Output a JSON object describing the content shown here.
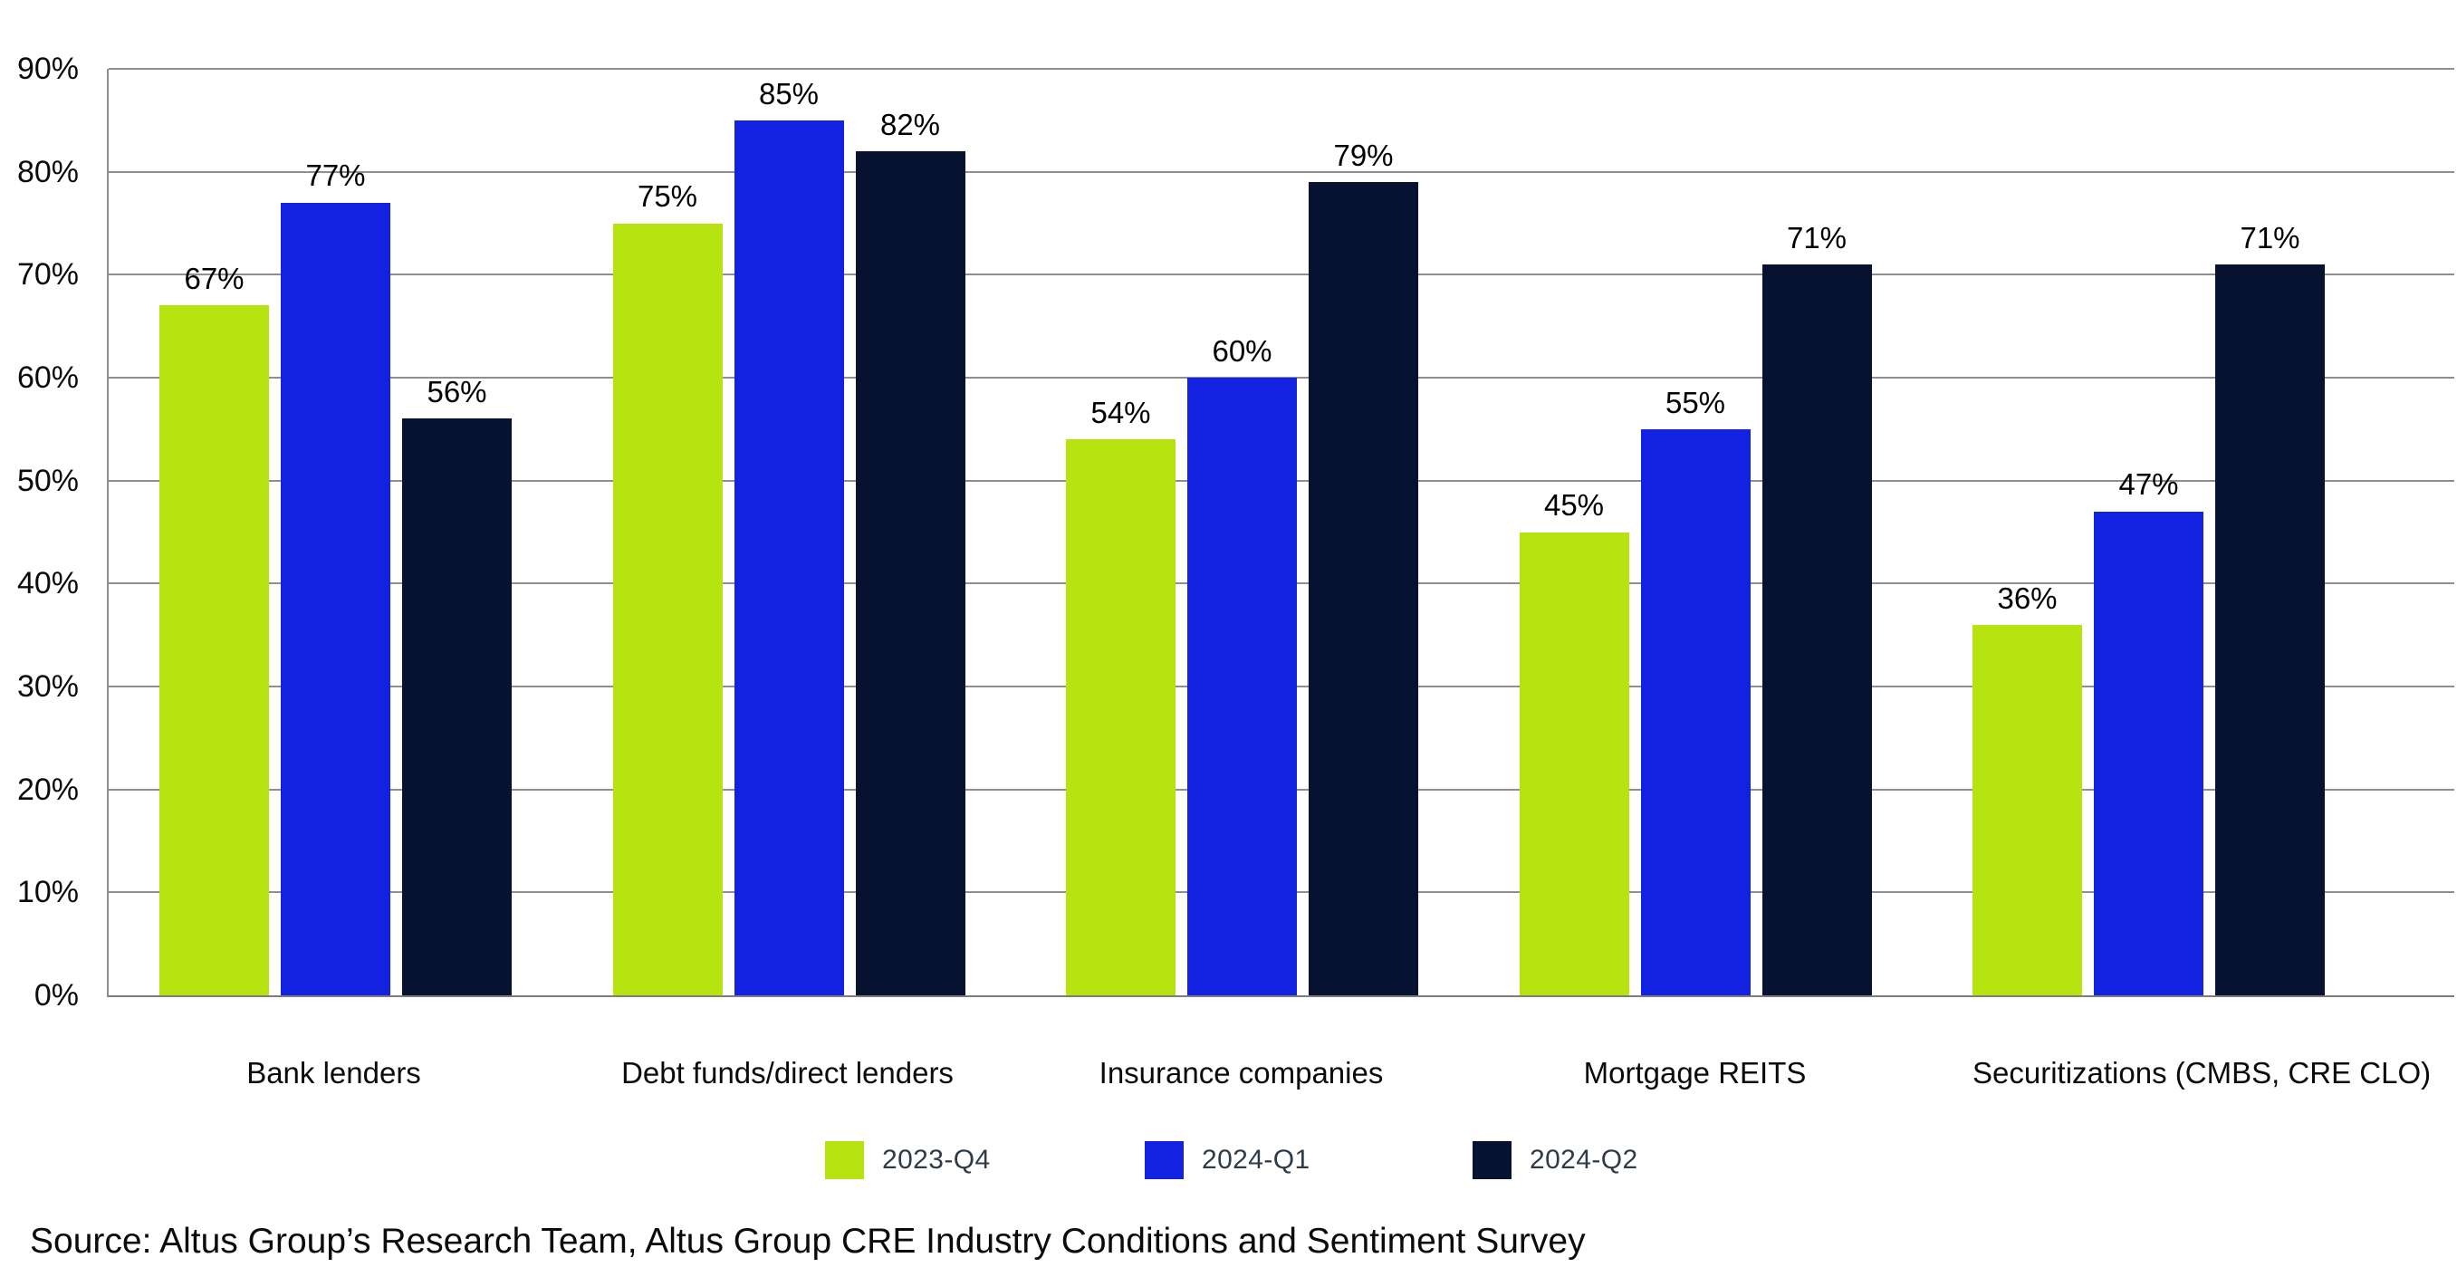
{
  "chart_data": {
    "type": "bar",
    "categories": [
      "Bank lenders",
      "Debt funds/direct lenders",
      "Insurance companies",
      "Mortgage REITS",
      "Securitizations (CMBS, CRE CLO)"
    ],
    "series": [
      {
        "name": "2023-Q4",
        "color": "#B7E311",
        "values": [
          67,
          75,
          54,
          45,
          36
        ]
      },
      {
        "name": "2024-Q1",
        "color": "#1322E0",
        "values": [
          77,
          85,
          60,
          55,
          47
        ]
      },
      {
        "name": "2024-Q2",
        "color": "#071230",
        "values": [
          56,
          82,
          79,
          71,
          71
        ]
      }
    ],
    "value_label_suffix": "%",
    "title": "",
    "xlabel": "",
    "ylabel": "",
    "ylim": [
      0,
      90
    ],
    "ytick_step": 10,
    "ytick_suffix": "%",
    "grid": true,
    "legend_position": "bottom"
  },
  "source": {
    "text": "Source: Altus Group’s Research Team, Altus Group CRE Industry Conditions and Sentiment Survey"
  }
}
